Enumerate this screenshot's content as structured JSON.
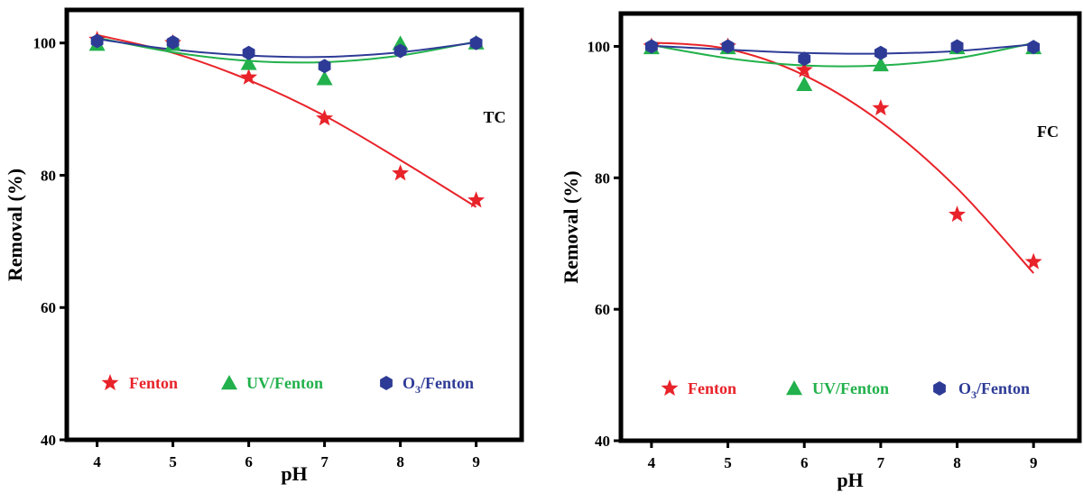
{
  "colors": {
    "fenton": "#e8232a",
    "uv_fenton": "#22b14c",
    "o3_fenton": "#2e3b96",
    "axis": "#000000"
  },
  "chart_data": [
    {
      "type": "scatter",
      "title": "",
      "annotation": "TC",
      "xlabel": "pH",
      "ylabel": "Removal (%)",
      "xlim": [
        3.6,
        9.6
      ],
      "ylim": [
        40,
        105
      ],
      "x_ticks": [
        "4",
        "5",
        "6",
        "7",
        "8",
        "9"
      ],
      "y_ticks": [
        "40",
        "60",
        "80",
        "100"
      ],
      "legend_position": "bottom",
      "series": [
        {
          "name": "Fenton",
          "marker": "star",
          "color_key": "fenton",
          "x": [
            4,
            5,
            6,
            7,
            8,
            9
          ],
          "y": [
            100.5,
            100,
            94.8,
            88.6,
            80.3,
            76.2
          ],
          "fit": [
            101.2,
            98.5,
            94.4,
            89.0,
            82.3,
            75.2
          ]
        },
        {
          "name": "UV/Fenton",
          "marker": "triangle",
          "color_key": "uv_fenton",
          "x": [
            4,
            5,
            6,
            7,
            8,
            9
          ],
          "y": [
            99.8,
            99.8,
            96.9,
            94.6,
            99.9,
            100
          ],
          "fit": [
            100.8,
            98.6,
            97.3,
            97.1,
            98.1,
            100.2
          ]
        },
        {
          "name": "O3/Fenton",
          "marker": "hexagon",
          "color_key": "o3_fenton",
          "x": [
            4,
            5,
            6,
            7,
            8,
            9
          ],
          "y": [
            100.3,
            100.1,
            98.5,
            96.5,
            98.8,
            100
          ],
          "fit": [
            100.6,
            99.0,
            98.1,
            97.9,
            98.6,
            100.1
          ]
        }
      ]
    },
    {
      "type": "scatter",
      "title": "",
      "annotation": "FC",
      "xlabel": "pH",
      "ylabel": "Removal (%)",
      "xlim": [
        3.6,
        9.6
      ],
      "ylim": [
        40,
        105
      ],
      "x_ticks": [
        "4",
        "5",
        "6",
        "7",
        "8",
        "9"
      ],
      "y_ticks": [
        "40",
        "60",
        "80",
        "100"
      ],
      "legend_position": "bottom",
      "series": [
        {
          "name": "Fenton",
          "marker": "star",
          "color_key": "fenton",
          "x": [
            4,
            5,
            6,
            7,
            8,
            9
          ],
          "y": [
            100,
            100,
            96.4,
            90.6,
            74.4,
            67.2
          ],
          "fit": [
            100.6,
            99.6,
            95.6,
            88.5,
            78.4,
            65.5
          ]
        },
        {
          "name": "UV/Fenton",
          "marker": "triangle",
          "color_key": "uv_fenton",
          "x": [
            4,
            5,
            6,
            7,
            8,
            9
          ],
          "y": [
            99.8,
            99.8,
            94.2,
            97.2,
            99.8,
            99.8
          ],
          "fit": [
            100.2,
            98.2,
            97.1,
            97.1,
            98.2,
            100.5
          ]
        },
        {
          "name": "O3/Fenton",
          "marker": "hexagon",
          "color_key": "o3_fenton",
          "x": [
            4,
            5,
            6,
            7,
            8,
            9
          ],
          "y": [
            100,
            100,
            98.1,
            99,
            100,
            99.9
          ],
          "fit": [
            100.1,
            99.5,
            99.0,
            98.9,
            99.3,
            100.3
          ]
        }
      ]
    }
  ]
}
